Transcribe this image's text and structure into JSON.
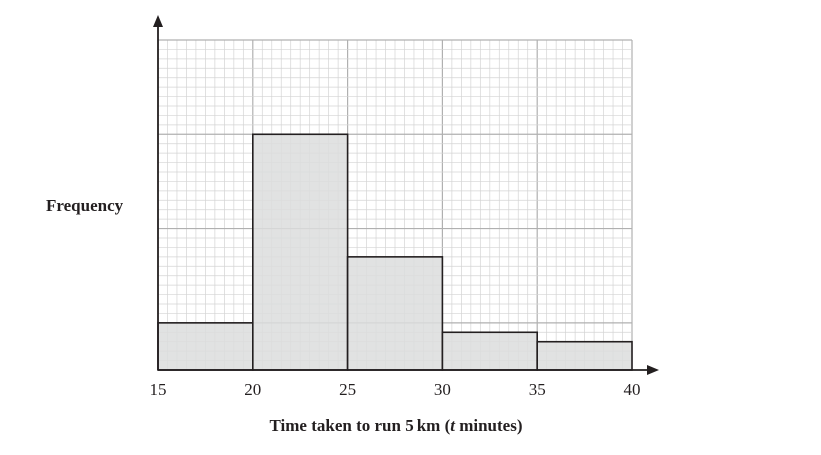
{
  "chart_data": {
    "type": "bar",
    "subtype": "histogram",
    "title": "",
    "xlabel": "Time taken to run 5 km (t minutes)",
    "xlabel_parts": [
      "Time taken to run 5",
      "km (",
      "t",
      " minutes)"
    ],
    "ylabel": "Frequency",
    "x_ticks": [
      "15",
      "20",
      "25",
      "30",
      "35",
      "40"
    ],
    "xlim": [
      15,
      40
    ],
    "ylim": [
      0,
      7
    ],
    "y_tick_labels": "none",
    "grid": true,
    "legend": "none",
    "bins": [
      {
        "start": 15,
        "end": 20,
        "height": 1.0
      },
      {
        "start": 20,
        "end": 25,
        "height": 5.0
      },
      {
        "start": 25,
        "end": 30,
        "height": 2.4
      },
      {
        "start": 30,
        "end": 35,
        "height": 0.8
      },
      {
        "start": 35,
        "end": 40,
        "height": 0.6
      }
    ],
    "colors": {
      "bar_fill": "#dcdddd",
      "bar_stroke": "#231f20",
      "grid_minor": "#d4d4d4",
      "grid_major": "#b0b0b0",
      "axis": "#231f20"
    }
  }
}
